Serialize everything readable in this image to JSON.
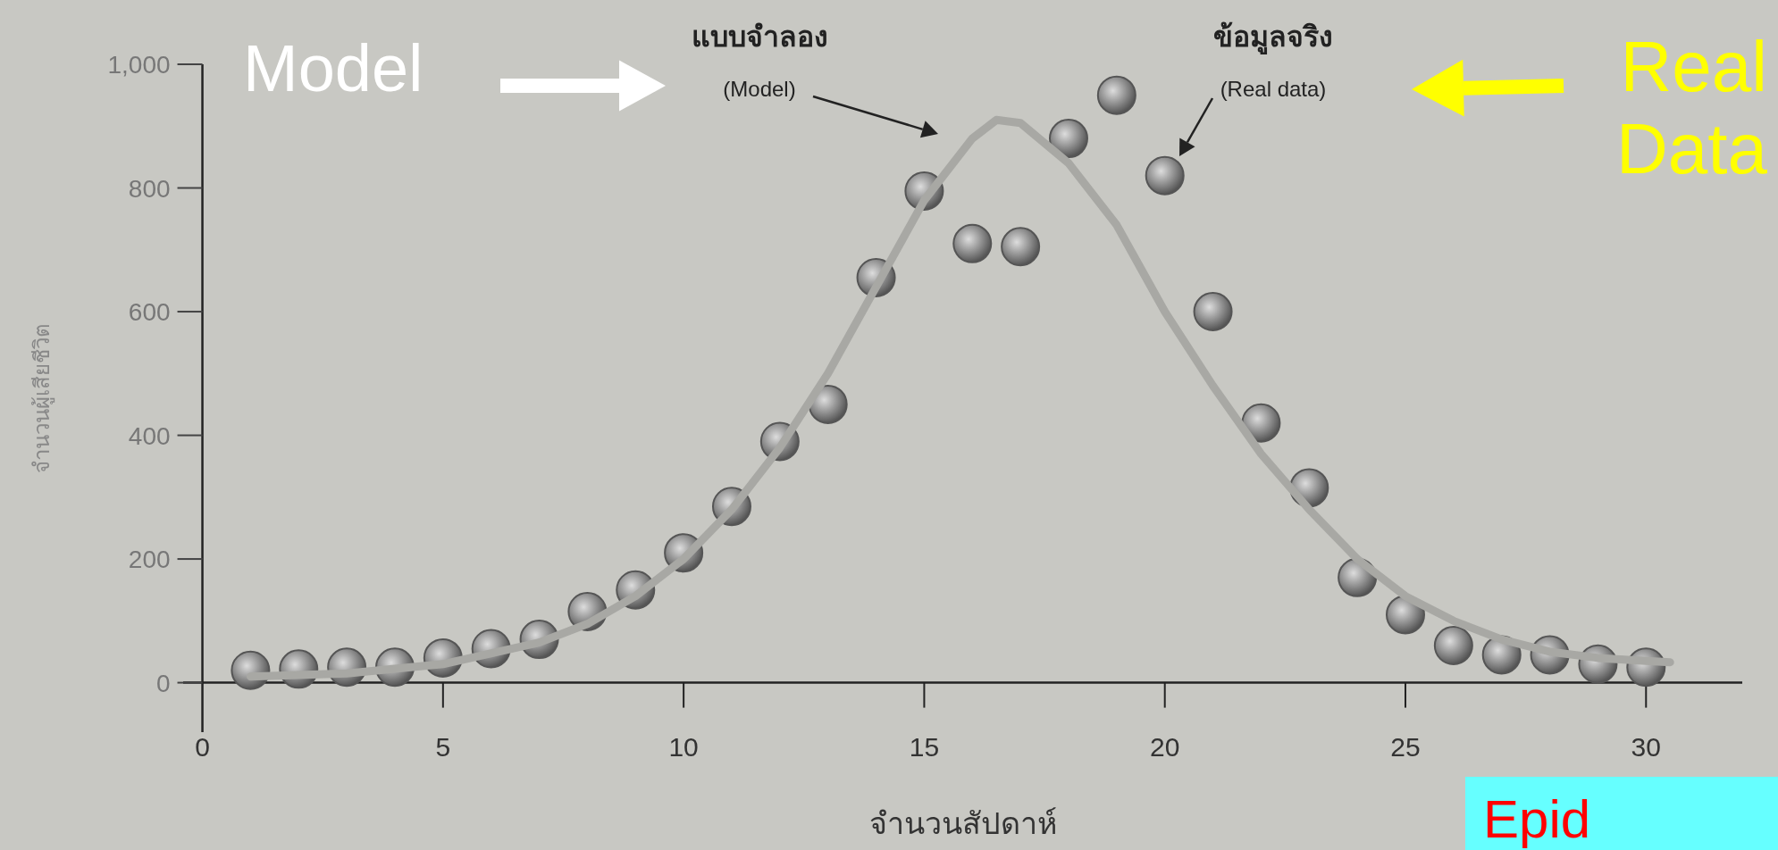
{
  "chart_data": {
    "type": "scatter",
    "xlabel": "จำนวนสัปดาห์",
    "ylabel": "จำนวนผู้เสียชีวิต",
    "xlim": [
      -0.4,
      32
    ],
    "ylim": [
      -80,
      1000
    ],
    "xticks": [
      0,
      5,
      10,
      15,
      20,
      25,
      30
    ],
    "yticks": [
      0,
      200,
      400,
      600,
      800,
      {
        "value": 1000,
        "label": "1,000"
      }
    ],
    "grid": false,
    "series": [
      {
        "type": "scatter",
        "marker": "circle",
        "color": "#555555",
        "x": [
          1,
          2,
          3,
          4,
          5,
          6,
          7,
          8,
          9,
          10,
          11,
          12,
          13,
          14,
          15,
          16,
          17,
          18,
          19,
          20,
          21,
          22,
          23,
          24,
          25,
          26,
          27,
          28,
          29,
          30
        ],
        "values": [
          20,
          22,
          25,
          25,
          40,
          55,
          70,
          115,
          150,
          210,
          285,
          390,
          450,
          655,
          795,
          710,
          705,
          880,
          950,
          820,
          600,
          420,
          315,
          170,
          110,
          60,
          45,
          45,
          30,
          25
        ]
      },
      {
        "type": "line",
        "color": "#a8a8a4",
        "line_style": "solid",
        "x": [
          1,
          3,
          5,
          7,
          8,
          9,
          10,
          11,
          12,
          13,
          14,
          15,
          16,
          16.5,
          17,
          18,
          19,
          20,
          21,
          22,
          23,
          24,
          25,
          26,
          27,
          28,
          29,
          30,
          30.5
        ],
        "values": [
          10,
          15,
          30,
          65,
          95,
          140,
          200,
          280,
          380,
          500,
          640,
          780,
          880,
          910,
          905,
          840,
          740,
          600,
          480,
          370,
          280,
          200,
          140,
          100,
          70,
          50,
          40,
          35,
          33
        ]
      }
    ],
    "annotations": [
      "แบบจำลอง",
      "(Model)",
      "ข้อมูลจริง",
      "(Real data)",
      "Model",
      "Real Data",
      "Epid"
    ]
  }
}
